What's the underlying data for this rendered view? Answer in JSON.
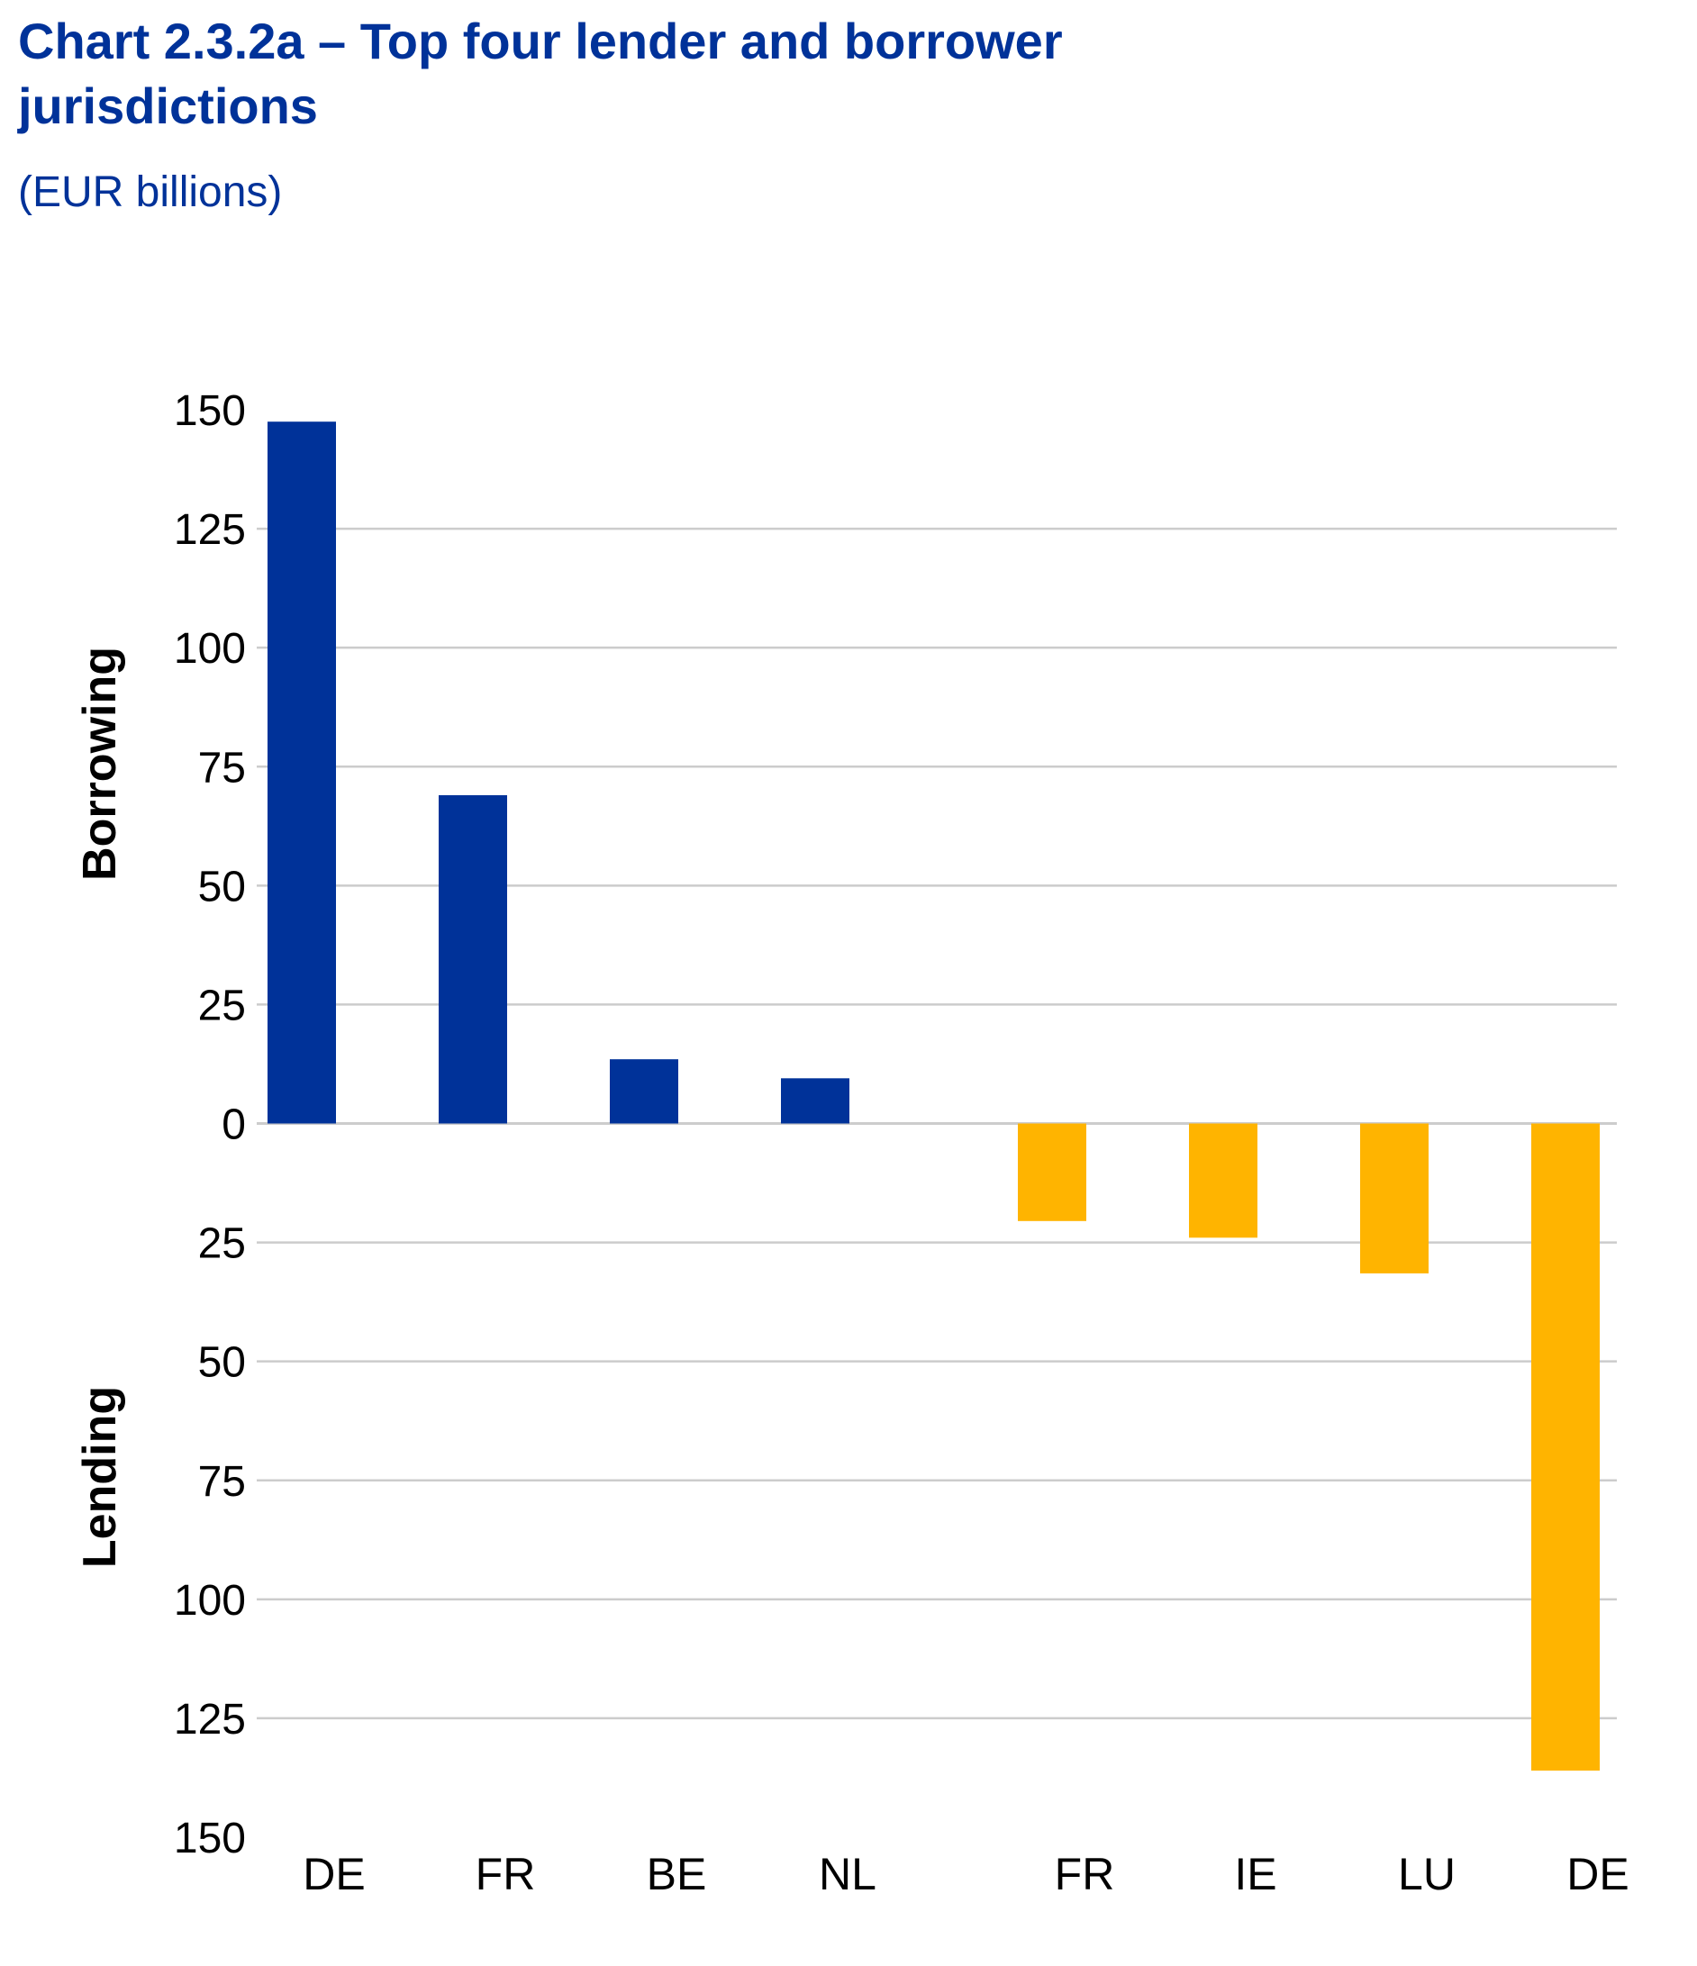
{
  "chart_data": {
    "type": "bar",
    "title": "Chart 2.3.2a – Top four lender and borrower jurisdictions",
    "subtitle": "(EUR billions)",
    "categories": [
      "DE",
      "FR",
      "BE",
      "NL",
      "FR",
      "IE",
      "LU",
      "DE"
    ],
    "series": [
      {
        "values": [
          147.5,
          69,
          13.5,
          9.5,
          null,
          null,
          null,
          null
        ],
        "color": "#003299"
      },
      {
        "values": [
          null,
          null,
          null,
          null,
          -20.5,
          -24,
          -31.5,
          -136
        ],
        "color": "#FFB400"
      }
    ],
    "ylim": [
      -150,
      150
    ],
    "yticks": [
      150,
      125,
      100,
      75,
      50,
      25,
      0,
      -25,
      -50,
      -75,
      -100,
      -125,
      -150
    ],
    "ytick_labels": [
      "150",
      "125",
      "100",
      "75",
      "50",
      "25",
      "0",
      "25",
      "50",
      "75",
      "100",
      "125",
      "150"
    ],
    "ylabel_top": "Borrowing",
    "ylabel_bottom": "Lending",
    "grid": true,
    "legend": "none"
  }
}
